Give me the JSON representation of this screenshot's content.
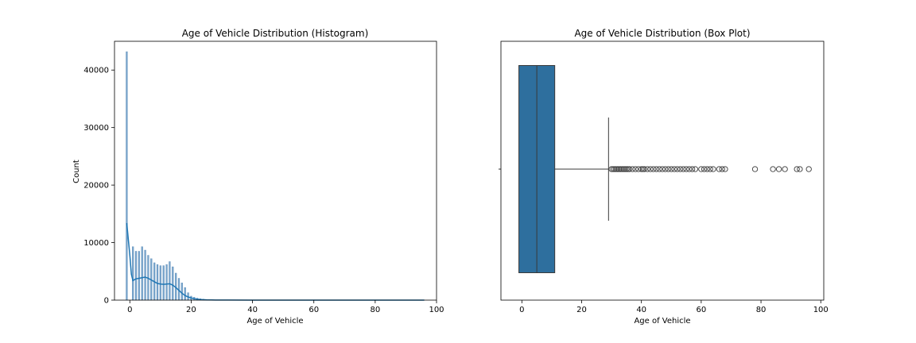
{
  "chart_data": [
    {
      "type": "histogram",
      "title": "Age of Vehicle Distribution (Histogram)",
      "xlabel": "Age of Vehicle",
      "ylabel": "Count",
      "xlim": [
        -5,
        100
      ],
      "ylim": [
        0,
        45000
      ],
      "xticks": [
        0,
        20,
        40,
        60,
        80,
        100
      ],
      "yticks": [
        0,
        10000,
        20000,
        30000,
        40000
      ],
      "bar_color": "#7aa6cc",
      "kde_color": "#1f77b4",
      "bins": {
        "x": [
          -1,
          1,
          2,
          3,
          4,
          5,
          6,
          7,
          8,
          9,
          10,
          11,
          12,
          13,
          14,
          15,
          16,
          17,
          18,
          19,
          20,
          21,
          22,
          23,
          24,
          25,
          26,
          27,
          28,
          29,
          30,
          35,
          40,
          50,
          60,
          70,
          80,
          96
        ],
        "counts": [
          43200,
          9300,
          8500,
          8500,
          9300,
          8700,
          7800,
          7200,
          6500,
          6200,
          6000,
          6000,
          6200,
          6700,
          5800,
          4700,
          3800,
          3000,
          2200,
          1300,
          700,
          500,
          350,
          250,
          180,
          120,
          90,
          70,
          50,
          40,
          30,
          20,
          15,
          10,
          8,
          5,
          3,
          2
        ]
      },
      "kde": {
        "x": [
          -1,
          0,
          0.5,
          1,
          2,
          3,
          4,
          5,
          6,
          7,
          8,
          9,
          10,
          11,
          12,
          13,
          14,
          15,
          16,
          17,
          18,
          19,
          20,
          21,
          22,
          23,
          25,
          28,
          32,
          40,
          50,
          60,
          70,
          80,
          96
        ],
        "y": [
          13400,
          7800,
          4500,
          3400,
          3700,
          3800,
          3900,
          4000,
          3800,
          3500,
          3200,
          2900,
          2800,
          2750,
          2800,
          2850,
          2600,
          2200,
          1700,
          1200,
          800,
          550,
          380,
          250,
          160,
          100,
          50,
          20,
          10,
          5,
          3,
          2,
          1,
          1,
          0
        ]
      }
    },
    {
      "type": "box",
      "title": "Age of Vehicle Distribution (Box Plot)",
      "xlabel": "Age of Vehicle",
      "xlim": [
        -7,
        101
      ],
      "xticks": [
        0,
        20,
        40,
        60,
        80,
        100
      ],
      "box_color": "#2e6f9e",
      "stats": {
        "whisker_low": -1,
        "q1": -1,
        "median": 5,
        "q3": 11,
        "whisker_high": 29
      },
      "outliers": [
        30,
        30.5,
        31,
        31.5,
        32,
        32.5,
        33,
        33.5,
        34,
        34.5,
        35,
        35.5,
        36,
        37,
        38,
        39,
        40,
        40.5,
        41,
        42,
        43,
        44,
        45,
        46,
        47,
        48,
        49,
        50,
        51,
        52,
        53,
        54,
        55,
        56,
        57,
        58,
        60,
        61,
        62,
        63,
        64,
        66,
        67,
        68,
        78,
        84,
        86,
        88,
        92,
        93,
        96
      ]
    }
  ]
}
